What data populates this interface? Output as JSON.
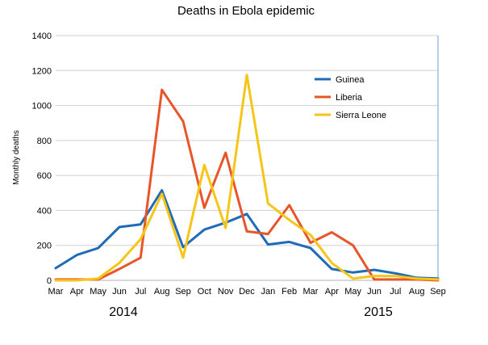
{
  "chart_data": {
    "type": "line",
    "title": "Deaths in Ebola epidemic",
    "ylabel": "Monthly deaths",
    "xlabel": "",
    "categories": [
      "Mar",
      "Apr",
      "May",
      "Jun",
      "Jul",
      "Aug",
      "Sep",
      "Oct",
      "Nov",
      "Dec",
      "Jan",
      "Feb",
      "Mar",
      "Apr",
      "May",
      "Jun",
      "Jul",
      "Aug",
      "Sep"
    ],
    "year_labels": [
      "2014",
      "2015"
    ],
    "ylim": [
      0,
      1400
    ],
    "yticks": [
      0,
      200,
      400,
      600,
      800,
      1000,
      1200,
      1400
    ],
    "grid": true,
    "legend_position": "top-right",
    "series": [
      {
        "name": "Guinea",
        "color": "#1f6bb5",
        "values": [
          70,
          145,
          185,
          305,
          320,
          515,
          190,
          290,
          330,
          380,
          205,
          220,
          185,
          65,
          45,
          60,
          40,
          15,
          10
        ]
      },
      {
        "name": "Liberia",
        "color": "#e8552a",
        "values": [
          5,
          5,
          5,
          65,
          130,
          1090,
          910,
          415,
          730,
          280,
          265,
          430,
          215,
          275,
          200,
          5,
          5,
          5,
          0
        ]
      },
      {
        "name": "Sierra Leone",
        "color": "#f5c518",
        "values": [
          0,
          0,
          10,
          100,
          235,
          495,
          130,
          660,
          300,
          1175,
          440,
          345,
          260,
          100,
          10,
          25,
          25,
          10,
          5
        ]
      }
    ]
  }
}
